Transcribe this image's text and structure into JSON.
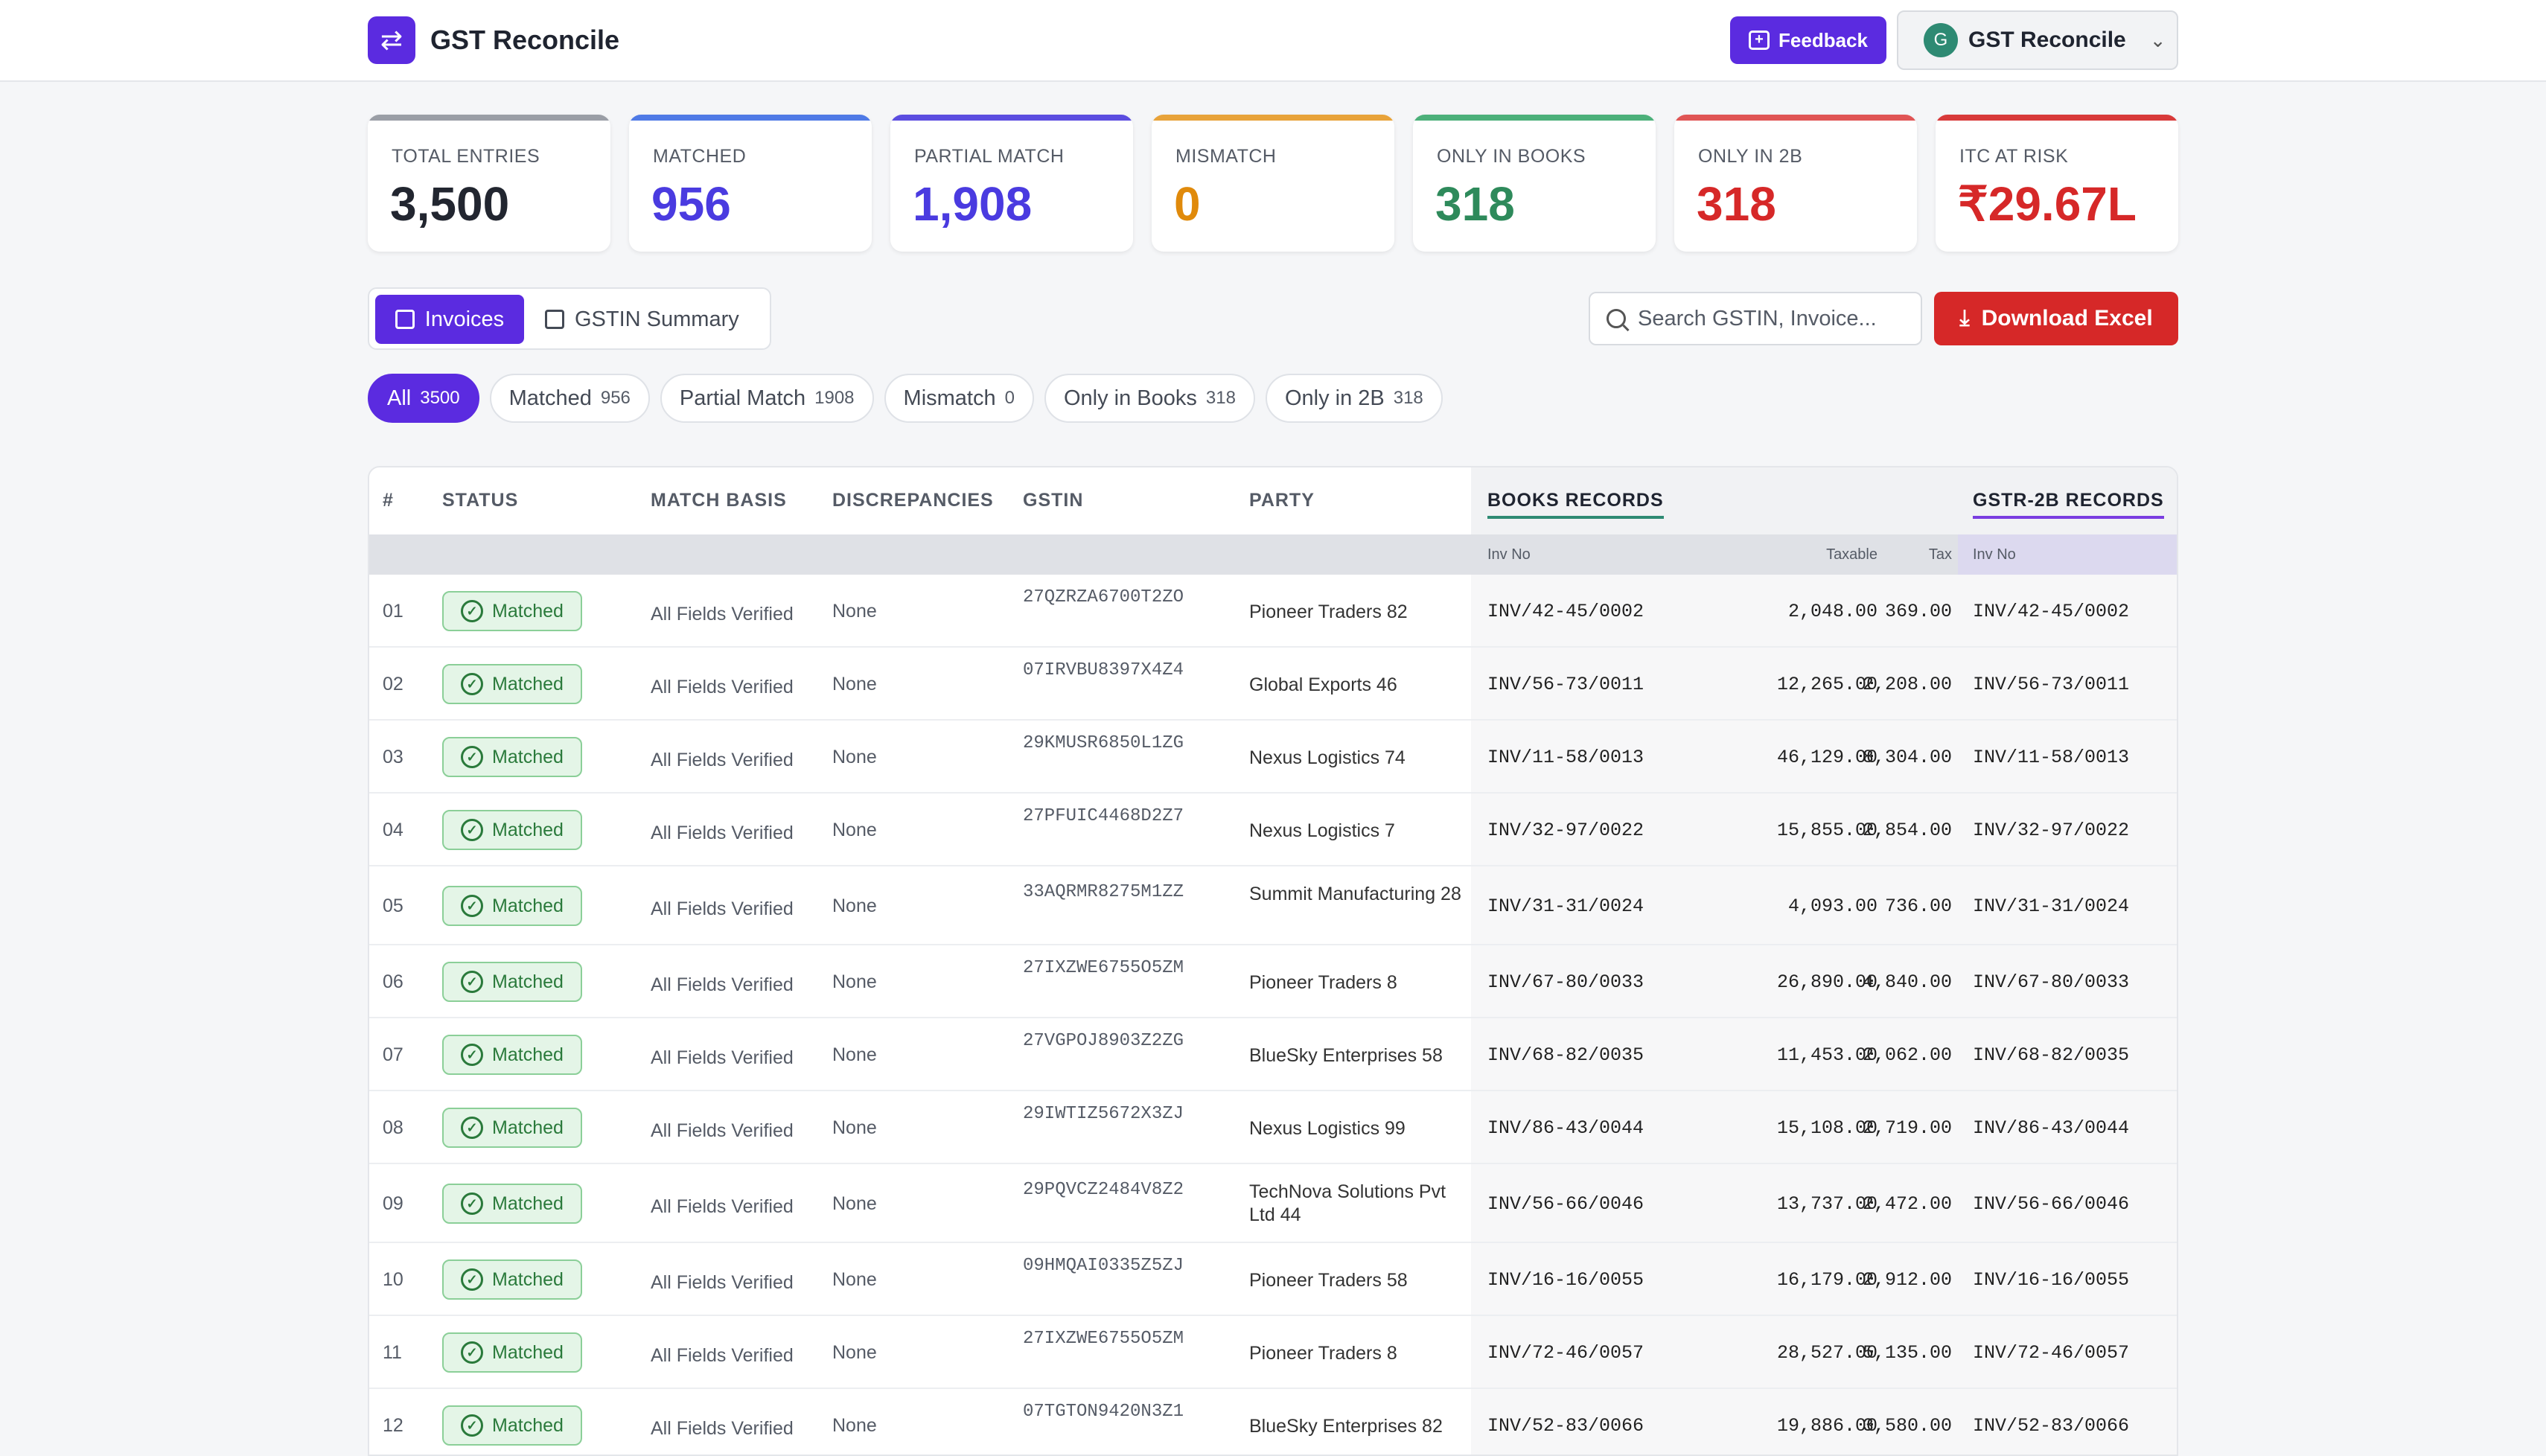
{
  "header": {
    "logo_glyph": "⇄",
    "app_title": "GST Reconcile",
    "feedback_label": "Feedback",
    "account_initial": "G",
    "account_label": "GST Reconcile"
  },
  "stats": [
    {
      "label": "TOTAL ENTRIES",
      "value": "3,500",
      "color": "#222630",
      "bar": "#9a9ea6"
    },
    {
      "label": "MATCHED",
      "value": "956",
      "color": "#4a3be0",
      "bar": "#4f7ae6"
    },
    {
      "label": "PARTIAL MATCH",
      "value": "1,908",
      "color": "#4a3be0",
      "bar": "#5b4de0"
    },
    {
      "label": "MISMATCH",
      "value": "0",
      "color": "#e08a0b",
      "bar": "#e8a33a"
    },
    {
      "label": "ONLY IN BOOKS",
      "value": "318",
      "color": "#2e8a5b",
      "bar": "#4cb07a"
    },
    {
      "label": "ONLY IN 2B",
      "value": "318",
      "color": "#d62828",
      "bar": "#e05555"
    },
    {
      "label": "ITC AT RISK",
      "value": "₹29.67L",
      "color": "#d62828",
      "bar": "#d83a3a"
    }
  ],
  "views": {
    "invoices_label": "Invoices",
    "gstin_summary_label": "GSTIN Summary"
  },
  "search": {
    "placeholder": "Search GSTIN, Invoice..."
  },
  "download_label": "Download Excel",
  "filters": [
    {
      "label": "All",
      "count": "3500",
      "active": true
    },
    {
      "label": "Matched",
      "count": "956"
    },
    {
      "label": "Partial Match",
      "count": "1908"
    },
    {
      "label": "Mismatch",
      "count": "0"
    },
    {
      "label": "Only in Books",
      "count": "318"
    },
    {
      "label": "Only in 2B",
      "count": "318"
    }
  ],
  "table": {
    "headers": {
      "num": "#",
      "status": "STATUS",
      "basis": "MATCH BASIS",
      "disc": "DISCREPANCIES",
      "gstin": "GSTIN",
      "party": "PARTY",
      "books": "BOOKS RECORDS",
      "gstr": "GSTR-2B RECORDS"
    },
    "subheaders": {
      "inv_no": "Inv No",
      "taxable": "Taxable",
      "tax": "Tax",
      "gstr_inv_no": "Inv No"
    },
    "rows": [
      {
        "n": "01",
        "status": "Matched",
        "basis": "All Fields Verified",
        "disc": "None",
        "gstin": "27QZRZA6700T2ZO",
        "party": "Pioneer Traders 82",
        "inv": "INV/42-45/0002",
        "taxable": "2,048.00",
        "tax": "369.00",
        "g_inv": "INV/42-45/0002"
      },
      {
        "n": "02",
        "status": "Matched",
        "basis": "All Fields Verified",
        "disc": "None",
        "gstin": "07IRVBU8397X4Z4",
        "party": "Global Exports 46",
        "inv": "INV/56-73/0011",
        "taxable": "12,265.00",
        "tax": "2,208.00",
        "g_inv": "INV/56-73/0011"
      },
      {
        "n": "03",
        "status": "Matched",
        "basis": "All Fields Verified",
        "disc": "None",
        "gstin": "29KMUSR6850L1ZG",
        "party": "Nexus Logistics 74",
        "inv": "INV/11-58/0013",
        "taxable": "46,129.00",
        "tax": "8,304.00",
        "g_inv": "INV/11-58/0013"
      },
      {
        "n": "04",
        "status": "Matched",
        "basis": "All Fields Verified",
        "disc": "None",
        "gstin": "27PFUIC4468D2Z7",
        "party": "Nexus Logistics 7",
        "inv": "INV/32-97/0022",
        "taxable": "15,855.00",
        "tax": "2,854.00",
        "g_inv": "INV/32-97/0022"
      },
      {
        "n": "05",
        "status": "Matched",
        "basis": "All Fields Verified",
        "disc": "None",
        "gstin": "33AQRMR8275M1ZZ",
        "party": "Summit Manufacturing 28",
        "inv": "INV/31-31/0024",
        "taxable": "4,093.00",
        "tax": "736.00",
        "g_inv": "INV/31-31/0024"
      },
      {
        "n": "06",
        "status": "Matched",
        "basis": "All Fields Verified",
        "disc": "None",
        "gstin": "27IXZWE6755O5ZM",
        "party": "Pioneer Traders 8",
        "inv": "INV/67-80/0033",
        "taxable": "26,890.00",
        "tax": "4,840.00",
        "g_inv": "INV/67-80/0033"
      },
      {
        "n": "07",
        "status": "Matched",
        "basis": "All Fields Verified",
        "disc": "None",
        "gstin": "27VGPOJ8903Z2ZG",
        "party": "BlueSky Enterprises 58",
        "inv": "INV/68-82/0035",
        "taxable": "11,453.00",
        "tax": "2,062.00",
        "g_inv": "INV/68-82/0035"
      },
      {
        "n": "08",
        "status": "Matched",
        "basis": "All Fields Verified",
        "disc": "None",
        "gstin": "29IWTIZ5672X3ZJ",
        "party": "Nexus Logistics 99",
        "inv": "INV/86-43/0044",
        "taxable": "15,108.00",
        "tax": "2,719.00",
        "g_inv": "INV/86-43/0044"
      },
      {
        "n": "09",
        "status": "Matched",
        "basis": "All Fields Verified",
        "disc": "None",
        "gstin": "29PQVCZ2484V8Z2",
        "party": "TechNova Solutions Pvt Ltd 44",
        "inv": "INV/56-66/0046",
        "taxable": "13,737.00",
        "tax": "2,472.00",
        "g_inv": "INV/56-66/0046"
      },
      {
        "n": "10",
        "status": "Matched",
        "basis": "All Fields Verified",
        "disc": "None",
        "gstin": "09HMQAI0335Z5ZJ",
        "party": "Pioneer Traders 58",
        "inv": "INV/16-16/0055",
        "taxable": "16,179.00",
        "tax": "2,912.00",
        "g_inv": "INV/16-16/0055"
      },
      {
        "n": "11",
        "status": "Matched",
        "basis": "All Fields Verified",
        "disc": "None",
        "gstin": "27IXZWE6755O5ZM",
        "party": "Pioneer Traders 8",
        "inv": "INV/72-46/0057",
        "taxable": "28,527.00",
        "tax": "5,135.00",
        "g_inv": "INV/72-46/0057"
      },
      {
        "n": "12",
        "status": "Matched",
        "basis": "All Fields Verified",
        "disc": "None",
        "gstin": "07TGTON9420N3Z1",
        "party": "BlueSky Enterprises 82",
        "inv": "INV/52-83/0066",
        "taxable": "19,886.00",
        "tax": "3,580.00",
        "g_inv": "INV/52-83/0066"
      }
    ]
  }
}
